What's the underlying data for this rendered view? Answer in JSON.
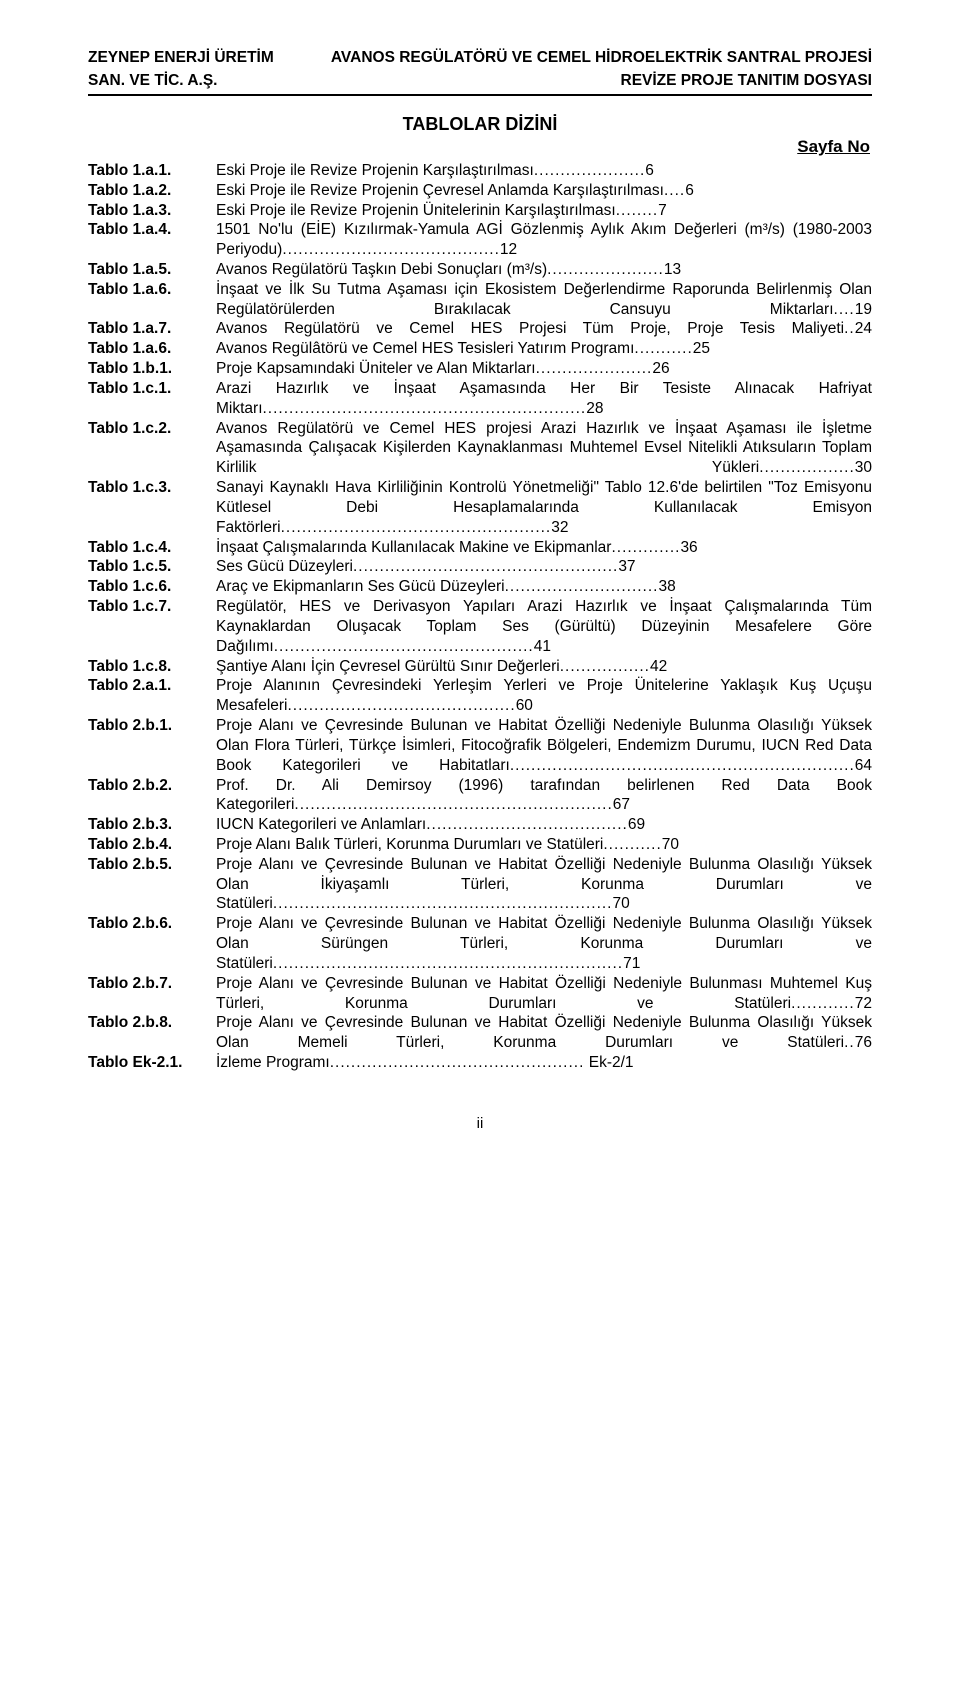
{
  "header": {
    "left1": "ZEYNEP ENERJİ ÜRETİM",
    "left2": "SAN. VE TİC. A.Ş.",
    "right1": "AVANOS REGÜLATÖRÜ VE CEMEL HİDROELEKTRİK SANTRAL PROJESİ",
    "right2": "REVİZE PROJE TANITIM DOSYASI"
  },
  "title": "TABLOLAR DİZİNİ",
  "sayfa": "Sayfa No",
  "entries": [
    {
      "label": "Tablo 1.a.1.",
      "text": "Eski Proje ile Revize Projenin Karşılaştırılması",
      "page": "6",
      "multi": false
    },
    {
      "label": "Tablo 1.a.2.",
      "text": "Eski Proje ile Revize Projenin Çevresel Anlamda Karşılaştırılması",
      "page": "6",
      "multi": false
    },
    {
      "label": "Tablo 1.a.3.",
      "text": "Eski Proje ile Revize Projenin Ünitelerinin Karşılaştırılması",
      "page": "7",
      "multi": false
    },
    {
      "label": "Tablo 1.a.4.",
      "text": "1501 No'lu (EİE) Kızılırmak-Yamula AGİ Gözlenmiş Aylık Akım Değerleri (m³/s) (1980-2003 Periyodu)",
      "page": "12",
      "multi": true
    },
    {
      "label": "Tablo 1.a.5.",
      "text": "Avanos Regülatörü Taşkın Debi Sonuçları (m³/s)",
      "page": "13",
      "multi": false
    },
    {
      "label": "Tablo 1.a.6.",
      "text": "İnşaat ve İlk Su Tutma Aşaması için Ekosistem Değerlendirme Raporunda Belirlenmiş Olan Regülatörülerden Bırakılacak Cansuyu Miktarları",
      "page": "19",
      "multi": true
    },
    {
      "label": "Tablo 1.a.7.",
      "text": "Avanos Regülatörü ve Cemel HES Projesi Tüm Proje, Proje Tesis Maliyeti",
      "page": "24",
      "multi": true
    },
    {
      "label": "Tablo 1.a.6.",
      "text": "Avanos Regülâtörü ve Cemel HES Tesisleri Yatırım Programı",
      "page": "25",
      "multi": false
    },
    {
      "label": "Tablo 1.b.1.",
      "text": "Proje Kapsamındaki Üniteler ve Alan Miktarları",
      "page": "26",
      "multi": false
    },
    {
      "label": "Tablo 1.c.1.",
      "text": "Arazi Hazırlık ve İnşaat Aşamasında Her Bir Tesiste Alınacak Hafriyat Miktarı",
      "page": "28",
      "multi": true
    },
    {
      "label": "Tablo 1.c.2.",
      "text": "Avanos Regülatörü ve Cemel HES projesi Arazi Hazırlık ve İnşaat Aşaması ile İşletme Aşamasında Çalışacak Kişilerden Kaynaklanması Muhtemel Evsel Nitelikli Atıksuların Toplam Kirlilik Yükleri",
      "page": "30",
      "multi": true
    },
    {
      "label": "Tablo 1.c.3.",
      "text": "Sanayi Kaynaklı Hava Kirliliğinin Kontrolü Yönetmeliği\" Tablo 12.6'de belirtilen \"Toz Emisyonu Kütlesel Debi Hesaplamalarında Kullanılacak Emisyon Faktörleri",
      "page": "32",
      "multi": true
    },
    {
      "label": "Tablo 1.c.4.",
      "text": "İnşaat Çalışmalarında Kullanılacak Makine ve Ekipmanlar",
      "page": "36",
      "multi": false
    },
    {
      "label": "Tablo 1.c.5.",
      "text": "Ses Gücü Düzeyleri",
      "page": "37",
      "multi": false
    },
    {
      "label": "Tablo 1.c.6.",
      "text": "Araç ve Ekipmanların Ses Gücü Düzeyleri",
      "page": "38",
      "multi": false
    },
    {
      "label": "Tablo 1.c.7.",
      "text": "Regülatör, HES ve Derivasyon Yapıları Arazi Hazırlık ve İnşaat Çalışmalarında Tüm Kaynaklardan Oluşacak Toplam Ses (Gürültü) Düzeyinin Mesafelere Göre Dağılımı",
      "page": "41",
      "multi": true
    },
    {
      "label": "Tablo 1.c.8.",
      "text": "Şantiye Alanı İçin Çevresel Gürültü Sınır Değerleri",
      "page": "42",
      "multi": false
    },
    {
      "label": "Tablo 2.a.1.",
      "text": "Proje Alanının Çevresindeki Yerleşim Yerleri ve Proje Ünitelerine Yaklaşık Kuş Uçuşu Mesafeleri",
      "page": "60",
      "multi": true
    },
    {
      "label": "Tablo 2.b.1.",
      "text": "Proje Alanı ve Çevresinde Bulunan ve Habitat Özelliği Nedeniyle Bulunma Olasılığı Yüksek Olan Flora Türleri, Türkçe İsimleri, Fitocoğrafik Bölgeleri, Endemizm Durumu, IUCN Red Data Book Kategorileri ve Habitatları",
      "page": "64",
      "multi": true
    },
    {
      "label": "Tablo 2.b.2.",
      "text": "Prof. Dr. Ali Demirsoy (1996) tarafından belirlenen Red Data Book Kategorileri",
      "page": "67",
      "multi": true
    },
    {
      "label": "Tablo 2.b.3.",
      "text": "IUCN Kategorileri ve Anlamları",
      "page": "69",
      "multi": false
    },
    {
      "label": "Tablo 2.b.4.",
      "text": "Proje Alanı Balık Türleri, Korunma Durumları ve Statüleri",
      "page": "70",
      "multi": false
    },
    {
      "label": "Tablo 2.b.5.",
      "text": "Proje Alanı ve Çevresinde Bulunan ve Habitat Özelliği Nedeniyle Bulunma Olasılığı Yüksek Olan İkiyaşamlı Türleri, Korunma Durumları ve Statüleri",
      "page": "70",
      "multi": true
    },
    {
      "label": "Tablo 2.b.6.",
      "text": "Proje Alanı ve Çevresinde Bulunan ve Habitat Özelliği Nedeniyle Bulunma Olasılığı Yüksek Olan Sürüngen Türleri, Korunma Durumları ve Statüleri",
      "page": "71",
      "multi": true
    },
    {
      "label": "Tablo 2.b.7.",
      "text": "Proje Alanı ve Çevresinde Bulunan ve Habitat Özelliği Nedeniyle Bulunması Muhtemel Kuş Türleri, Korunma Durumları ve Statüleri",
      "page": "72",
      "multi": true
    },
    {
      "label": "Tablo 2.b.8.",
      "text": "Proje Alanı ve Çevresinde Bulunan ve Habitat Özelliği Nedeniyle Bulunma Olasılığı Yüksek Olan Memeli Türleri, Korunma Durumları ve Statüleri",
      "page": "76",
      "multi": true
    },
    {
      "label": "Tablo Ek-2.1.",
      "text": "İzleme Programı",
      "page": " Ek-2/1",
      "multi": false
    }
  ],
  "footer": "ii"
}
